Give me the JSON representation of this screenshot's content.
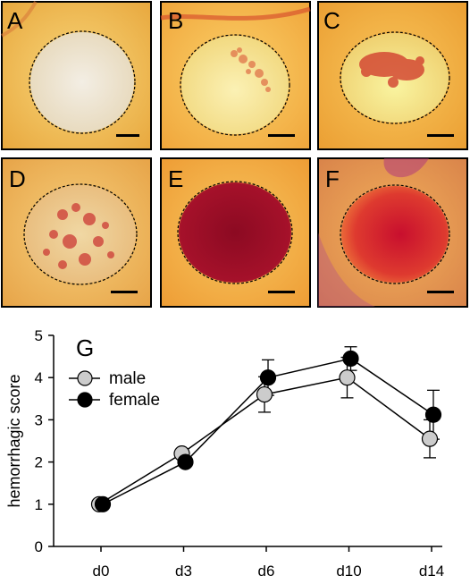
{
  "panels": [
    {
      "letter": "A",
      "tint": "#f5ecdc",
      "center": "#efe6d2",
      "blot": 0.0
    },
    {
      "letter": "B",
      "tint": "#f7e88e",
      "center": "#f6eaa2",
      "blot": 0.15
    },
    {
      "letter": "C",
      "tint": "#f6e373",
      "center": "#f4d46a",
      "blot": 0.4
    },
    {
      "letter": "D",
      "tint": "#f1cf7a",
      "center": "#efc98a",
      "blot": 0.55
    },
    {
      "letter": "E",
      "tint": "#b4172f",
      "center": "#8d0f25",
      "blot": 0.95
    },
    {
      "letter": "F",
      "tint": "#e5473a",
      "center": "#c8102e",
      "blot": 1.0
    }
  ],
  "chart_data": {
    "type": "line",
    "panel_letter": "G",
    "categories": [
      "d0",
      "d3",
      "d6",
      "d10",
      "d14"
    ],
    "ylabel": "hemorrhagic score",
    "ylim": [
      0,
      5
    ],
    "yticks": [
      "0",
      "1",
      "2",
      "3",
      "4",
      "5"
    ],
    "series": [
      {
        "name": "male",
        "values": [
          1.0,
          2.2,
          3.6,
          4.0,
          2.55
        ],
        "err": [
          0,
          0,
          0.42,
          0.48,
          0.45
        ],
        "color": "#cccccc"
      },
      {
        "name": "female",
        "values": [
          1.0,
          2.0,
          4.0,
          4.45,
          3.12
        ],
        "err": [
          0,
          0,
          0.42,
          0.28,
          0.58
        ],
        "color": "#000000"
      }
    ]
  }
}
